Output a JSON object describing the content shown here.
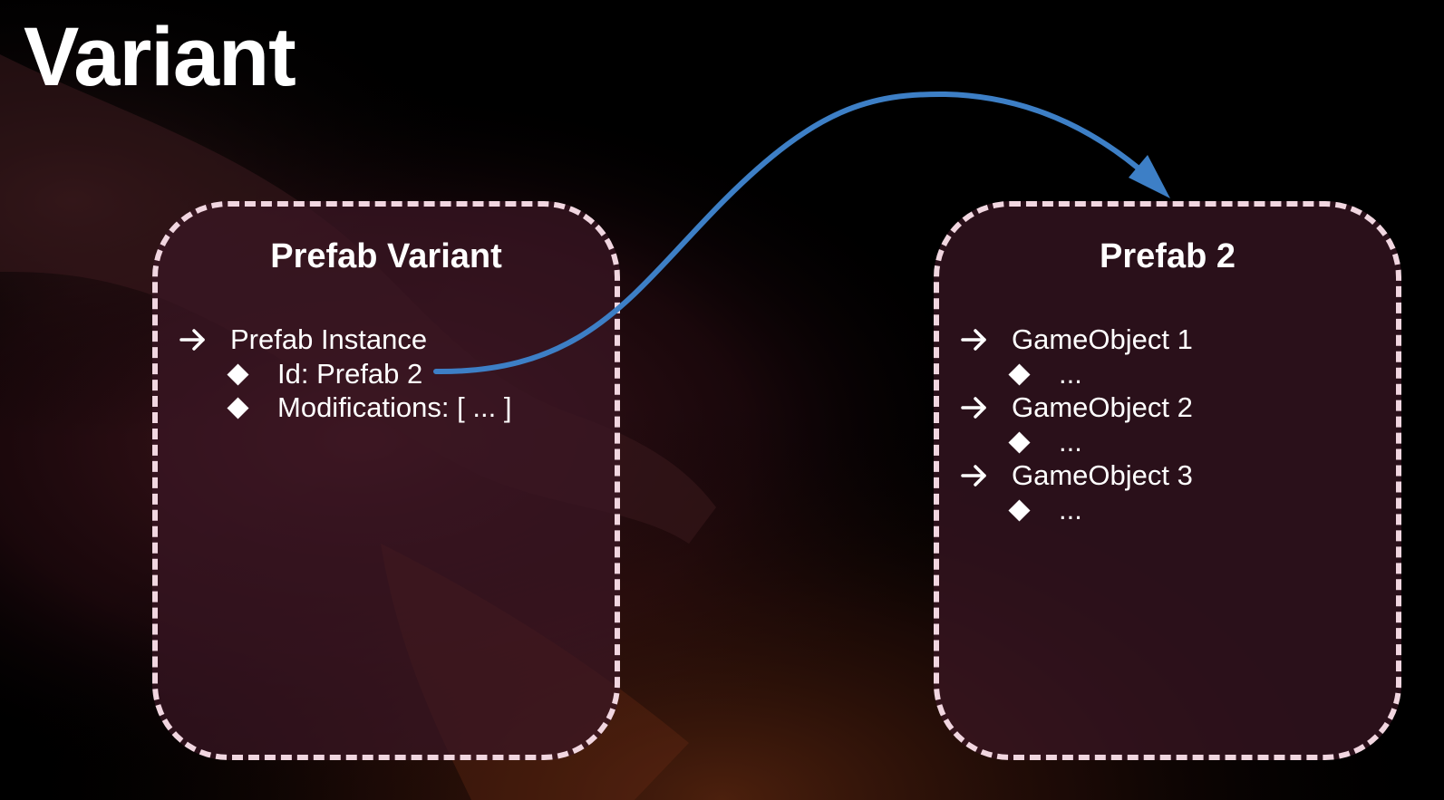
{
  "slide": {
    "title": "Variant"
  },
  "left_box": {
    "title": "Prefab Variant",
    "heading": {
      "icon": "arrow-right-icon",
      "text": "Prefab Instance"
    },
    "properties": [
      {
        "icon": "diamond-icon",
        "text": "Id: Prefab 2"
      },
      {
        "icon": "diamond-icon",
        "text": "Modifications: [ ... ]"
      }
    ]
  },
  "right_box": {
    "title": "Prefab 2",
    "objects": [
      {
        "icon": "arrow-right-icon",
        "text": "GameObject 1",
        "child": {
          "icon": "diamond-icon",
          "text": "..."
        }
      },
      {
        "icon": "arrow-right-icon",
        "text": "GameObject 2",
        "child": {
          "icon": "diamond-icon",
          "text": "..."
        }
      },
      {
        "icon": "arrow-right-icon",
        "text": "GameObject 3",
        "child": {
          "icon": "diamond-icon",
          "text": "..."
        }
      }
    ]
  },
  "connector": {
    "from": "Id: Prefab 2",
    "to": "Prefab 2",
    "icon": "curved-arrow-icon"
  },
  "colors": {
    "background": "#000000",
    "box_fill": "#3a1624",
    "box_border": "#f1d6e0",
    "connector": "#3d7fc6",
    "text": "#ffffff"
  }
}
